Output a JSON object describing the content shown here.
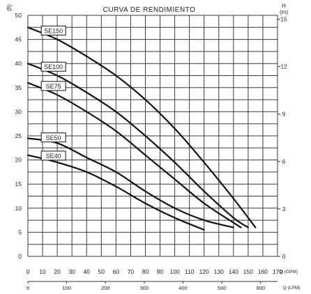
{
  "chart_data": {
    "type": "line",
    "title": "CURVA DE RENDIMIENTO",
    "y_left": {
      "label": "(ft)",
      "range": [
        0,
        50
      ],
      "ticks": [
        "0",
        "5",
        "10",
        "15",
        "20",
        "25",
        "30",
        "35",
        "40",
        "45",
        "50"
      ]
    },
    "y_right": {
      "label_top": "H",
      "label_unit": "(m)",
      "range": [
        0,
        15.24
      ],
      "ticks": [
        "0",
        "3",
        "6",
        "9",
        "12",
        "15"
      ]
    },
    "x": {
      "label": "Q (GPM)",
      "range": [
        0,
        170
      ],
      "ticks": [
        "0",
        "10",
        "20",
        "30",
        "40",
        "50",
        "60",
        "70",
        "80",
        "90",
        "100",
        "110",
        "120",
        "130",
        "140",
        "150",
        "160",
        "170"
      ]
    },
    "x_secondary": {
      "label": "Q (LPM)",
      "range": [
        0,
        643.5
      ],
      "ticks": [
        "0",
        "100",
        "200",
        "300",
        "400",
        "500",
        "600"
      ]
    },
    "grid": true,
    "series": [
      {
        "name": "SE150",
        "x": [
          0,
          20,
          40,
          60,
          80,
          100,
          120,
          140,
          155
        ],
        "y": [
          47.5,
          45,
          41.5,
          37.5,
          32.5,
          26.5,
          19.5,
          12,
          6
        ]
      },
      {
        "name": "SE100",
        "x": [
          0,
          20,
          40,
          60,
          80,
          100,
          120,
          140,
          150
        ],
        "y": [
          40,
          37.5,
          34,
          30,
          25,
          19.5,
          13.5,
          8,
          6
        ]
      },
      {
        "name": "SE75",
        "x": [
          0,
          20,
          40,
          60,
          80,
          100,
          120,
          140,
          145
        ],
        "y": [
          36,
          33.5,
          30,
          26,
          21,
          16,
          11,
          7,
          6
        ]
      },
      {
        "name": "SE50",
        "x": [
          0,
          20,
          40,
          60,
          80,
          100,
          120,
          140
        ],
        "y": [
          24.5,
          23.5,
          20.5,
          17.5,
          13.5,
          10,
          7.5,
          6
        ]
      },
      {
        "name": "SE40",
        "x": [
          0,
          20,
          40,
          60,
          80,
          100,
          120
        ],
        "y": [
          21,
          19.5,
          17.5,
          14.5,
          11,
          8,
          5.5
        ]
      }
    ]
  }
}
